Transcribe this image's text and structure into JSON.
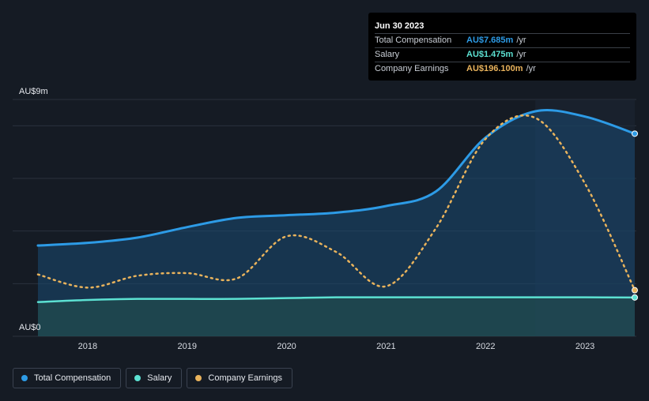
{
  "tooltip": {
    "date": "Jun 30 2023",
    "rows": [
      {
        "label": "Total Compensation",
        "value": "AU$7.685m",
        "unit": "/yr",
        "color": "#2d9be6"
      },
      {
        "label": "Salary",
        "value": "AU$1.475m",
        "unit": "/yr",
        "color": "#5ce1d2"
      },
      {
        "label": "Company Earnings",
        "value": "AU$196.100m",
        "unit": "/yr",
        "color": "#e9b35c"
      }
    ]
  },
  "legend": [
    {
      "label": "Total Compensation",
      "color": "#2d9be6"
    },
    {
      "label": "Salary",
      "color": "#5ce1d2"
    },
    {
      "label": "Company Earnings",
      "color": "#e9b35c"
    }
  ],
  "chart_data": {
    "type": "line",
    "y_axis_labels": [
      "AU$9m",
      "AU$0"
    ],
    "ylim": [
      0,
      9
    ],
    "xlim": [
      2017.5,
      2023.5
    ],
    "x_tick_labels": [
      "2018",
      "2019",
      "2020",
      "2021",
      "2022",
      "2023"
    ],
    "x_ticks": [
      2018,
      2019,
      2020,
      2021,
      2022,
      2023
    ],
    "grid": true,
    "highlight_from": 2022.5,
    "series": [
      {
        "name": "Total Compensation",
        "color": "#2d9be6",
        "x": [
          2017.5,
          2018.0,
          2018.5,
          2019.0,
          2019.5,
          2020.0,
          2020.5,
          2021.0,
          2021.5,
          2022.0,
          2022.5,
          2023.0,
          2023.5
        ],
        "values": [
          3.45,
          3.55,
          3.75,
          4.15,
          4.5,
          4.6,
          4.7,
          4.95,
          5.5,
          7.55,
          8.55,
          8.35,
          7.7
        ]
      },
      {
        "name": "Salary",
        "color": "#5ce1d2",
        "x": [
          2017.5,
          2018.0,
          2018.5,
          2019.0,
          2019.5,
          2020.0,
          2020.5,
          2021.0,
          2021.5,
          2022.0,
          2022.5,
          2023.0,
          2023.5
        ],
        "values": [
          1.3,
          1.38,
          1.42,
          1.42,
          1.42,
          1.45,
          1.48,
          1.48,
          1.48,
          1.48,
          1.48,
          1.48,
          1.475
        ]
      },
      {
        "name": "Company Earnings",
        "color": "#e9b35c",
        "dashed": true,
        "x": [
          2017.5,
          2018.0,
          2018.5,
          2019.0,
          2019.5,
          2020.0,
          2020.5,
          2021.0,
          2021.5,
          2022.0,
          2022.5,
          2023.0,
          2023.5
        ],
        "values": [
          2.35,
          1.85,
          2.3,
          2.4,
          2.2,
          3.8,
          3.2,
          1.9,
          4.1,
          7.5,
          8.3,
          5.8,
          1.75
        ]
      }
    ]
  }
}
